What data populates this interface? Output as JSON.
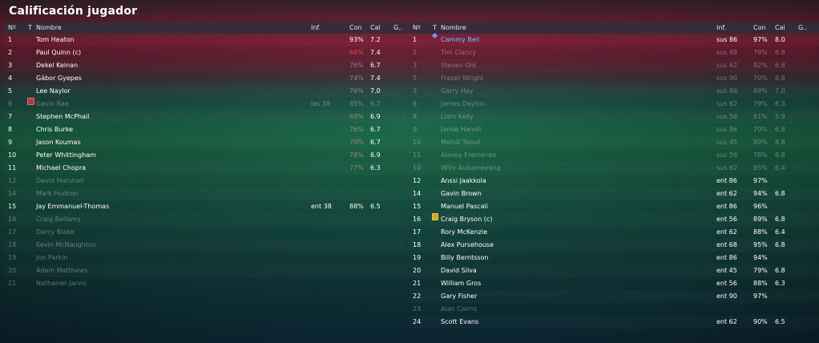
{
  "title": "Calificación jugador",
  "columns": {
    "num": "Nº",
    "t": "T",
    "name": "Nombre",
    "inf": "Inf.",
    "con": "Con",
    "cal": "Cal",
    "g": "G.."
  },
  "left_rows": [
    {
      "num": "1",
      "name": "Tom Heaton",
      "inf": "",
      "con": "93%",
      "cal": "7.2",
      "dim": false
    },
    {
      "num": "2",
      "name": "Paul Quinn (c)",
      "inf": "",
      "con": "66%",
      "cal": "7.4",
      "dim": false,
      "con_red": true
    },
    {
      "num": "3",
      "name": "Dekel Keinan",
      "inf": "",
      "con": "76%",
      "cal": "6.7",
      "dim": false,
      "con_low": true
    },
    {
      "num": "4",
      "name": "Gábor Gyepes",
      "inf": "",
      "con": "74%",
      "cal": "7.4",
      "dim": false,
      "con_low": true
    },
    {
      "num": "5",
      "name": "Lee Naylor",
      "inf": "",
      "con": "76%",
      "cal": "7.0",
      "dim": false,
      "con_low": true
    },
    {
      "num": "6",
      "name": "Gavin Rae",
      "inf": "les 38",
      "con": "85%",
      "cal": "6.7",
      "dim": true,
      "icon": "injury-icon"
    },
    {
      "num": "7",
      "name": "Stephen McPhail",
      "inf": "",
      "con": "69%",
      "cal": "6.9",
      "dim": false,
      "con_low": true
    },
    {
      "num": "8",
      "name": "Chris Burke",
      "inf": "",
      "con": "76%",
      "cal": "6.7",
      "dim": false,
      "con_low": true
    },
    {
      "num": "9",
      "name": "Jason Koumas",
      "inf": "",
      "con": "70%",
      "cal": "6.7",
      "dim": false,
      "con_low": true
    },
    {
      "num": "10",
      "name": "Peter Whittingham",
      "inf": "",
      "con": "78%",
      "cal": "6.9",
      "dim": false,
      "con_low": true
    },
    {
      "num": "11",
      "name": "Michael Chopra",
      "inf": "",
      "con": "77%",
      "cal": "6.3",
      "dim": false,
      "con_low": true
    },
    {
      "num": "12",
      "name": "David Marshall",
      "inf": "",
      "con": "",
      "cal": "",
      "dim": true
    },
    {
      "num": "14",
      "name": "Mark Hudson",
      "inf": "",
      "con": "",
      "cal": "",
      "dim": true
    },
    {
      "num": "15",
      "name": "Jay Emmanuel-Thomas",
      "inf": "ent 38",
      "con": "88%",
      "cal": "6.5",
      "dim": false
    },
    {
      "num": "16",
      "name": "Craig Bellamy",
      "inf": "",
      "con": "",
      "cal": "",
      "dim": true
    },
    {
      "num": "17",
      "name": "Darcy Blake",
      "inf": "",
      "con": "",
      "cal": "",
      "dim": true
    },
    {
      "num": "18",
      "name": "Kevin McNaughton",
      "inf": "",
      "con": "",
      "cal": "",
      "dim": true
    },
    {
      "num": "19",
      "name": "Jon Parkin",
      "inf": "",
      "con": "",
      "cal": "",
      "dim": true
    },
    {
      "num": "20",
      "name": "Adam Matthews",
      "inf": "",
      "con": "",
      "cal": "",
      "dim": true
    },
    {
      "num": "21",
      "name": "Nathaniel Jarvis",
      "inf": "",
      "con": "",
      "cal": "",
      "dim": true
    }
  ],
  "right_rows": [
    {
      "num": "1",
      "name": "Cammy Bell",
      "inf": "sus 86",
      "con": "97%",
      "cal": "8.0",
      "dim": false,
      "icon": "diamond-icon",
      "blue": true
    },
    {
      "num": "2",
      "name": "Tim Clancy",
      "inf": "sus 68",
      "con": "79%",
      "cal": "6.8",
      "dim": true
    },
    {
      "num": "3",
      "name": "Steven Old",
      "inf": "sus 62",
      "con": "82%",
      "cal": "6.8",
      "dim": true
    },
    {
      "num": "5",
      "name": "Frazer Wright",
      "inf": "sus 90",
      "con": "70%",
      "cal": "6.8",
      "dim": true
    },
    {
      "num": "3",
      "name": "Garry Hay",
      "inf": "sus 86",
      "con": "69%",
      "cal": "7.0",
      "dim": true
    },
    {
      "num": "6",
      "name": "James Dayton",
      "inf": "sus 62",
      "con": "79%",
      "cal": "6.3",
      "dim": true
    },
    {
      "num": "8",
      "name": "Liam Kelly",
      "inf": "sus 56",
      "con": "81%",
      "cal": "5.9",
      "dim": true
    },
    {
      "num": "9",
      "name": "Jamie Hamill",
      "inf": "sus 86",
      "con": "70%",
      "cal": "6.8",
      "dim": true
    },
    {
      "num": "10",
      "name": "Mehdi Taouil",
      "inf": "sus 45",
      "con": "80%",
      "cal": "6.8",
      "dim": true
    },
    {
      "num": "11",
      "name": "Alexey Eremenko",
      "inf": "sus 56",
      "con": "78%",
      "cal": "6.8",
      "dim": true
    },
    {
      "num": "10",
      "name": "Willy Aubameyang",
      "inf": "sus 62",
      "con": "85%",
      "cal": "6.4",
      "dim": true
    },
    {
      "num": "12",
      "name": "Anssi Jaakkola",
      "inf": "ent 86",
      "con": "97%",
      "cal": "",
      "dim": false
    },
    {
      "num": "14",
      "name": "Gavin Brown",
      "inf": "ent 62",
      "con": "94%",
      "cal": "6.8",
      "dim": false
    },
    {
      "num": "15",
      "name": "Manuel Pascali",
      "inf": "ent 86",
      "con": "96%",
      "cal": "",
      "dim": false
    },
    {
      "num": "16",
      "name": "Craig Bryson (c)",
      "inf": "ent 56",
      "con": "89%",
      "cal": "6.8",
      "dim": false,
      "icon": "captain-icon"
    },
    {
      "num": "17",
      "name": "Rory McKenzie",
      "inf": "ent 62",
      "con": "88%",
      "cal": "6.4",
      "dim": false
    },
    {
      "num": "18",
      "name": "Alex Pursehouse",
      "inf": "ent 68",
      "con": "95%",
      "cal": "6.8",
      "dim": false
    },
    {
      "num": "19",
      "name": "Billy Berntsson",
      "inf": "ent 86",
      "con": "94%",
      "cal": "",
      "dim": false
    },
    {
      "num": "20",
      "name": "David Silva",
      "inf": "ent 45",
      "con": "79%",
      "cal": "6.8",
      "dim": false
    },
    {
      "num": "21",
      "name": "William Gros",
      "inf": "ent 56",
      "con": "88%",
      "cal": "6.3",
      "dim": false
    },
    {
      "num": "22",
      "name": "Gary Fisher",
      "inf": "ent 90",
      "con": "97%",
      "cal": "",
      "dim": false
    },
    {
      "num": "23",
      "name": "Alan Cairns",
      "inf": "",
      "con": "",
      "cal": "",
      "dim": true
    },
    {
      "num": "24",
      "name": "Scott Evans",
      "inf": "ent 62",
      "con": "90%",
      "cal": "6.5",
      "dim": false
    }
  ]
}
